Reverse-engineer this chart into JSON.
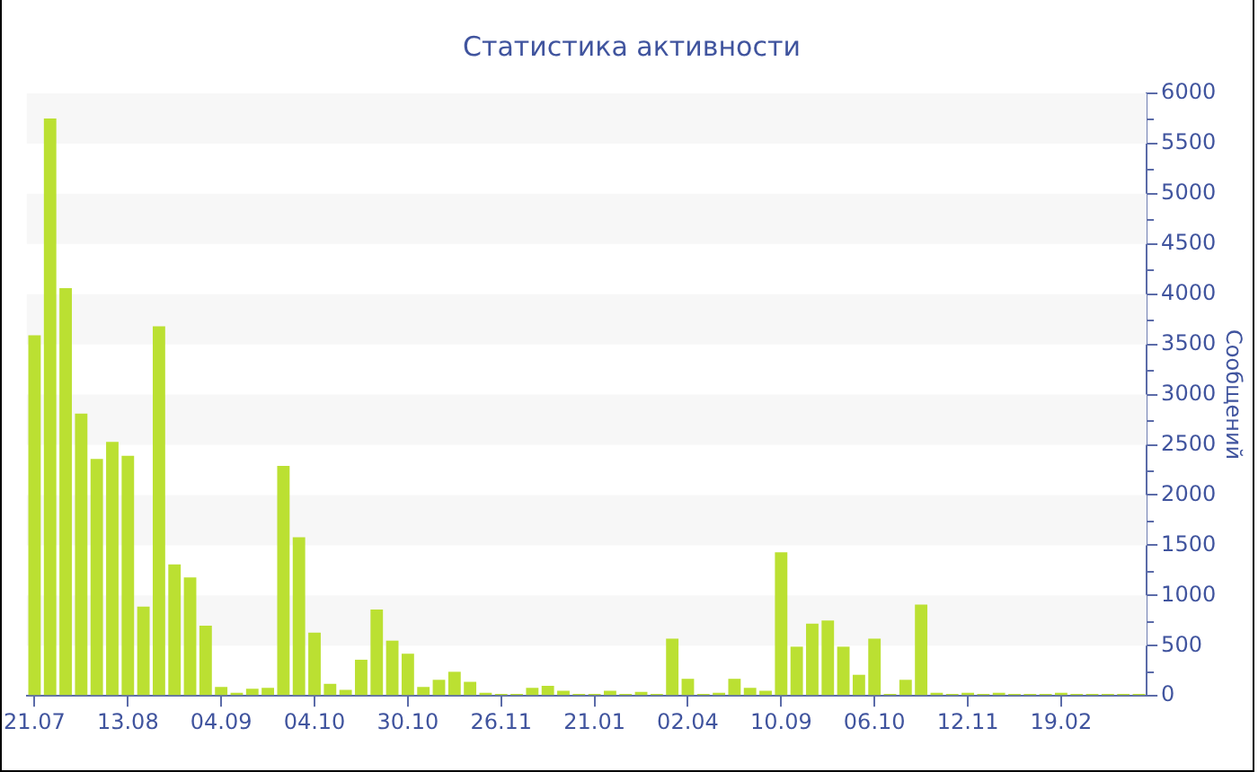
{
  "chart_data": {
    "type": "bar",
    "title": "Статистика активности",
    "ylabel": "Сообщений",
    "categories": [
      "21.07",
      null,
      null,
      null,
      null,
      null,
      "13.08",
      null,
      null,
      null,
      null,
      null,
      "04.09",
      null,
      null,
      null,
      null,
      null,
      "04.10",
      null,
      null,
      null,
      null,
      null,
      "30.10",
      null,
      null,
      null,
      null,
      null,
      "26.11",
      null,
      null,
      null,
      null,
      null,
      "21.01",
      null,
      null,
      null,
      null,
      null,
      "02.04",
      null,
      null,
      null,
      null,
      null,
      "10.09",
      null,
      null,
      null,
      null,
      null,
      "06.10",
      null,
      null,
      null,
      null,
      null,
      "12.11",
      null,
      null,
      null,
      null,
      null,
      "19.02",
      null,
      null,
      null,
      null,
      null
    ],
    "values": [
      3590,
      5750,
      4060,
      2810,
      2360,
      2530,
      2390,
      890,
      3680,
      1310,
      1180,
      700,
      90,
      30,
      70,
      80,
      2290,
      1580,
      630,
      120,
      60,
      360,
      860,
      550,
      420,
      90,
      160,
      240,
      140,
      30,
      20,
      20,
      80,
      100,
      50,
      20,
      20,
      50,
      20,
      40,
      20,
      570,
      170,
      20,
      30,
      170,
      80,
      50,
      1430,
      490,
      720,
      750,
      490,
      210,
      570,
      20,
      160,
      910,
      30,
      20,
      30,
      20,
      30,
      20,
      20,
      20,
      30,
      20,
      20,
      20,
      20,
      20
    ],
    "color": "#bbe032",
    "ylim": [
      0,
      6000
    ],
    "yticks": [
      0,
      500,
      1000,
      1500,
      2000,
      2500,
      3000,
      3500,
      4000,
      4500,
      5000,
      5500,
      6000
    ],
    "bands": [
      {
        "axis": "y",
        "from": 500,
        "to": 1000,
        "color": "#f7f7f7"
      },
      {
        "axis": "y",
        "from": 1500,
        "to": 2000,
        "color": "#f7f7f7"
      },
      {
        "axis": "y",
        "from": 2500,
        "to": 3000,
        "color": "#f7f7f7"
      },
      {
        "axis": "y",
        "from": 3500,
        "to": 4000,
        "color": "#f7f7f7"
      },
      {
        "axis": "y",
        "from": 4500,
        "to": 5000,
        "color": "#f7f7f7"
      },
      {
        "axis": "y",
        "from": 5500,
        "to": 6000,
        "color": "#f7f7f7"
      }
    ]
  }
}
